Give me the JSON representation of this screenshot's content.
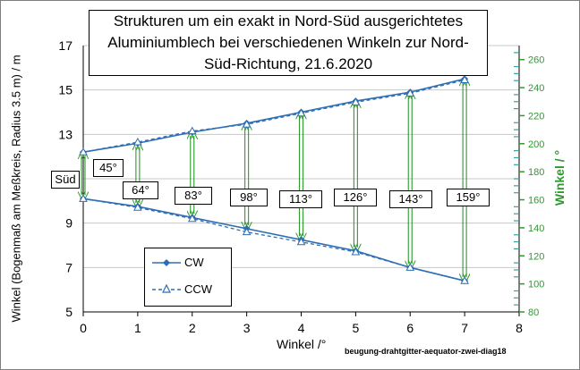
{
  "chart_data": {
    "type": "line",
    "title": "Strukturen um ein exakt in Nord-Süd ausgerichtetes Aluminiumblech bei verschiedenen Winkeln zur Nord-Süd-Richtung, 21.6.2020",
    "xlabel": "Winkel /°",
    "ylabel_left": "Winkel (Bogenmaß am Meßkreis, Radius 3.5 m) / m",
    "ylabel_right": "Winkel / °",
    "x": [
      0,
      1,
      2,
      3,
      4,
      5,
      6,
      7
    ],
    "xlim": [
      0,
      8
    ],
    "ylim_left": [
      5,
      17
    ],
    "ylim_right": [
      80,
      270
    ],
    "x_ticks": [
      "0",
      "1",
      "2",
      "3",
      "4",
      "5",
      "6",
      "7",
      "8"
    ],
    "y_ticks_left": [
      "5",
      "7",
      "9",
      "11",
      "13",
      "15",
      "17"
    ],
    "y_ticks_right": [
      "80",
      "100",
      "120",
      "140",
      "160",
      "180",
      "200",
      "220",
      "240",
      "260"
    ],
    "series": [
      {
        "name": "CW",
        "upper": [
          12.2,
          12.6,
          13.1,
          13.5,
          14.0,
          14.5,
          14.9,
          15.5
        ],
        "lower": [
          10.1,
          9.75,
          9.25,
          8.75,
          8.25,
          7.75,
          7.0,
          6.4
        ]
      },
      {
        "name": "CCW",
        "upper": [
          12.2,
          12.65,
          13.15,
          13.45,
          13.95,
          14.45,
          14.85,
          15.45
        ],
        "lower": [
          10.1,
          9.7,
          9.2,
          8.6,
          8.15,
          7.7,
          7.0,
          6.4
        ]
      }
    ],
    "angle_labels": [
      {
        "x": 0,
        "text": "45°"
      },
      {
        "x": 1,
        "text": "64°"
      },
      {
        "x": 2,
        "text": "83°"
      },
      {
        "x": 3,
        "text": "98°"
      },
      {
        "x": 4,
        "text": "113°"
      },
      {
        "x": 5,
        "text": "126°"
      },
      {
        "x": 6,
        "text": "143°"
      },
      {
        "x": 7,
        "text": "159°"
      }
    ],
    "south_label": "Süd",
    "credit": "beugung-drahtgitter-aequator-zwei-diag18"
  },
  "colors": {
    "series": "#2f6eb5",
    "arrow": "#2e9a2e",
    "right_axis": "#2e9a2e"
  }
}
